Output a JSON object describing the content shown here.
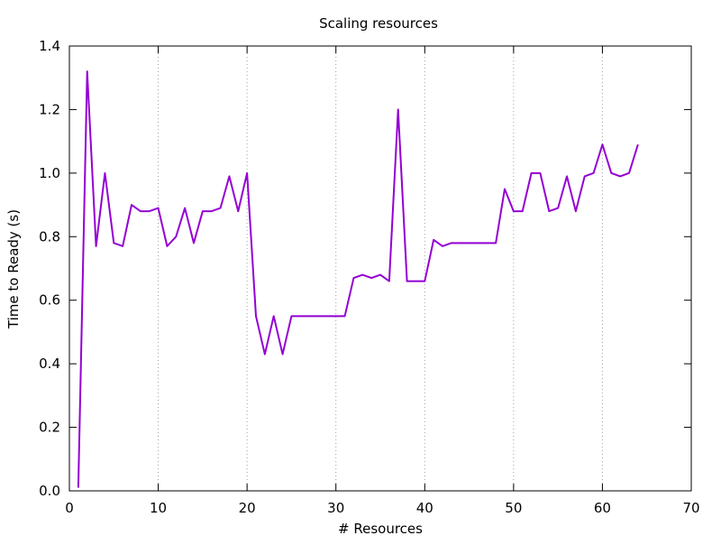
{
  "chart_data": {
    "type": "line",
    "title": "Scaling resources",
    "xlabel": "# Resources",
    "ylabel": "Time to Ready (s)",
    "xlim": [
      0,
      70
    ],
    "ylim": [
      0.0,
      1.4
    ],
    "xticks": [
      0,
      10,
      20,
      30,
      40,
      50,
      60,
      70
    ],
    "yticks": [
      0.0,
      0.2,
      0.4,
      0.6,
      0.8,
      1.0,
      1.2,
      1.4
    ],
    "xtick_labels": [
      "0",
      "10",
      "20",
      "30",
      "40",
      "50",
      "60",
      "70"
    ],
    "ytick_labels": [
      "0.0",
      "0.2",
      "0.4",
      "0.6",
      "0.8",
      "1.0",
      "1.2",
      "1.4"
    ],
    "grid": "vertical dotted at major x ticks",
    "legend": "none",
    "series": [
      {
        "color": "#9400d3",
        "x": [
          1,
          2,
          3,
          4,
          5,
          6,
          7,
          8,
          9,
          10,
          11,
          12,
          13,
          14,
          15,
          16,
          17,
          18,
          19,
          20,
          21,
          22,
          23,
          24,
          25,
          26,
          27,
          28,
          29,
          30,
          31,
          32,
          33,
          34,
          35,
          36,
          37,
          38,
          39,
          40,
          41,
          42,
          43,
          44,
          45,
          46,
          47,
          48,
          49,
          50,
          51,
          52,
          53,
          54,
          55,
          56,
          57,
          58,
          59,
          60,
          61,
          62,
          63,
          64
        ],
        "y": [
          0.01,
          1.32,
          0.77,
          1.0,
          0.78,
          0.77,
          0.9,
          0.88,
          0.88,
          0.89,
          0.77,
          0.8,
          0.89,
          0.78,
          0.88,
          0.88,
          0.89,
          0.99,
          0.88,
          1.0,
          0.55,
          0.43,
          0.55,
          0.43,
          0.55,
          0.55,
          0.55,
          0.55,
          0.55,
          0.55,
          0.55,
          0.67,
          0.68,
          0.67,
          0.68,
          0.66,
          1.2,
          0.66,
          0.66,
          0.66,
          0.79,
          0.77,
          0.78,
          0.78,
          0.78,
          0.78,
          0.78,
          0.78,
          0.95,
          0.88,
          0.88,
          1.0,
          1.0,
          0.88,
          0.89,
          0.99,
          0.88,
          0.99,
          1.0,
          1.09,
          1.0,
          0.99,
          1.0,
          1.09
        ]
      }
    ]
  }
}
